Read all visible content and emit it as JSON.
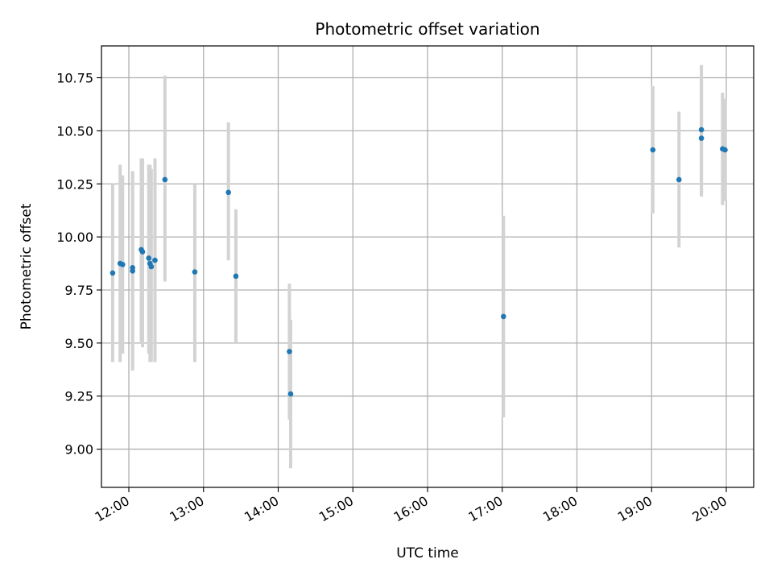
{
  "chart_data": {
    "type": "scatter",
    "title": "Photometric offset variation",
    "xlabel": "UTC time",
    "ylabel": "Photometric offset",
    "x_axis_type": "time",
    "xlim": [
      "11:38",
      "20:22"
    ],
    "ylim": [
      8.82,
      10.9
    ],
    "xticks": [
      "12:00",
      "13:00",
      "14:00",
      "15:00",
      "16:00",
      "17:00",
      "18:00",
      "19:00",
      "20:00"
    ],
    "yticks": [
      "9.00",
      "9.25",
      "9.50",
      "9.75",
      "10.00",
      "10.25",
      "10.50",
      "10.75"
    ],
    "grid": true,
    "point_color": "#1f77b4",
    "errorbar_color": "#d3d3d3",
    "points": [
      {
        "x": "11:47",
        "y": 9.83,
        "yerr_low": 9.41,
        "yerr_high": 10.25
      },
      {
        "x": "11:53",
        "y": 9.875,
        "yerr_low": 9.41,
        "yerr_high": 10.34
      },
      {
        "x": "11:55",
        "y": 9.87,
        "yerr_low": 9.45,
        "yerr_high": 10.29
      },
      {
        "x": "12:03",
        "y": 9.855,
        "yerr_low": 9.4,
        "yerr_high": 10.31
      },
      {
        "x": "12:03",
        "y": 9.84,
        "yerr_low": 9.37,
        "yerr_high": 10.3
      },
      {
        "x": "12:10",
        "y": 9.94,
        "yerr_low": 9.5,
        "yerr_high": 10.37
      },
      {
        "x": "12:11",
        "y": 9.93,
        "yerr_low": 9.48,
        "yerr_high": 10.37
      },
      {
        "x": "12:16",
        "y": 9.9,
        "yerr_low": 9.45,
        "yerr_high": 10.34
      },
      {
        "x": "12:17",
        "y": 9.875,
        "yerr_low": 9.41,
        "yerr_high": 10.34
      },
      {
        "x": "12:18",
        "y": 9.86,
        "yerr_low": 9.41,
        "yerr_high": 10.32
      },
      {
        "x": "12:21",
        "y": 9.89,
        "yerr_low": 9.41,
        "yerr_high": 10.37
      },
      {
        "x": "12:29",
        "y": 10.27,
        "yerr_low": 9.79,
        "yerr_high": 10.76
      },
      {
        "x": "12:53",
        "y": 9.835,
        "yerr_low": 9.41,
        "yerr_high": 10.25
      },
      {
        "x": "13:20",
        "y": 10.21,
        "yerr_low": 9.89,
        "yerr_high": 10.54
      },
      {
        "x": "13:26",
        "y": 9.815,
        "yerr_low": 9.5,
        "yerr_high": 10.13
      },
      {
        "x": "14:09",
        "y": 9.46,
        "yerr_low": 9.14,
        "yerr_high": 9.78
      },
      {
        "x": "14:10",
        "y": 9.26,
        "yerr_low": 8.91,
        "yerr_high": 9.61
      },
      {
        "x": "17:01",
        "y": 9.625,
        "yerr_low": 9.15,
        "yerr_high": 10.1
      },
      {
        "x": "19:01",
        "y": 10.41,
        "yerr_low": 10.11,
        "yerr_high": 10.71
      },
      {
        "x": "19:22",
        "y": 10.27,
        "yerr_low": 9.95,
        "yerr_high": 10.59
      },
      {
        "x": "19:40",
        "y": 10.505,
        "yerr_low": 10.2,
        "yerr_high": 10.81
      },
      {
        "x": "19:40",
        "y": 10.465,
        "yerr_low": 10.19,
        "yerr_high": 10.74
      },
      {
        "x": "19:57",
        "y": 10.415,
        "yerr_low": 10.15,
        "yerr_high": 10.68
      },
      {
        "x": "19:59",
        "y": 10.41,
        "yerr_low": 10.17,
        "yerr_high": 10.65
      }
    ]
  }
}
